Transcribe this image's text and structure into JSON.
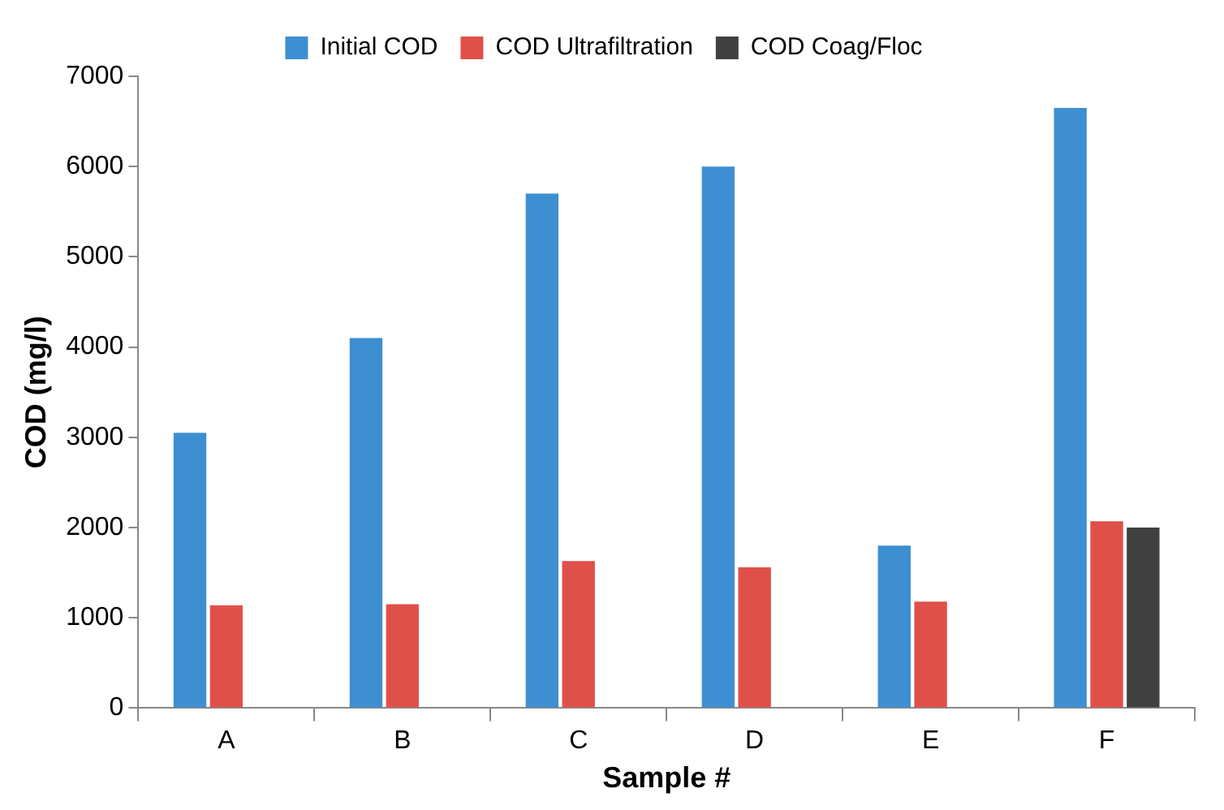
{
  "chart_data": {
    "type": "bar",
    "xlabel": "Sample #",
    "ylabel": "COD (mg/l)",
    "categories": [
      "A",
      "B",
      "C",
      "D",
      "E",
      "F"
    ],
    "series": [
      {
        "name": "Initial COD",
        "color": "#3d8fd1",
        "values": [
          3050,
          4100,
          5700,
          6000,
          1800,
          6650
        ]
      },
      {
        "name": "COD Ultrafiltration",
        "color": "#e0504a",
        "values": [
          1140,
          1150,
          1630,
          1560,
          1180,
          2070
        ]
      },
      {
        "name": "COD Coag/Floc",
        "color": "#404040",
        "values": [
          null,
          null,
          null,
          null,
          null,
          2000
        ]
      }
    ],
    "ylim": [
      0,
      7000
    ],
    "yticks": [
      0,
      1000,
      2000,
      3000,
      4000,
      5000,
      6000,
      7000
    ],
    "grid": false,
    "legend": "top"
  }
}
